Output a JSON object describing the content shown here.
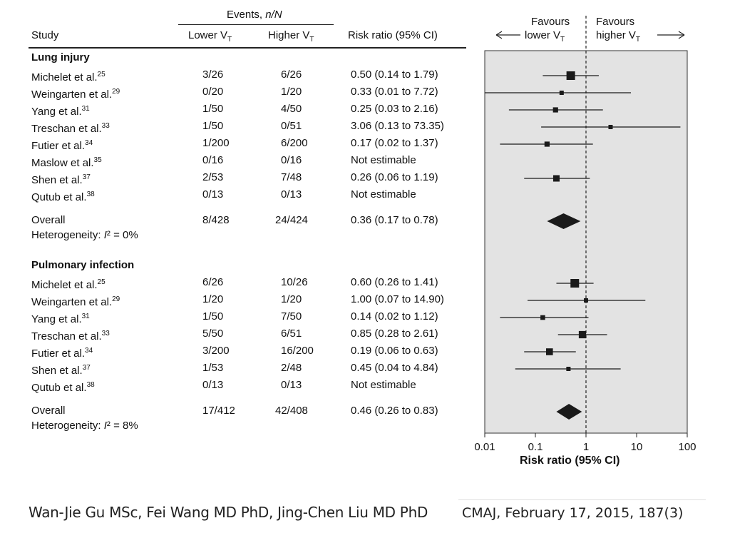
{
  "header": {
    "events_label": "Events, ",
    "events_nN": "n/N",
    "study": "Study",
    "lower": "Lower V",
    "higher": "Higher V",
    "vt_sub": "T",
    "risk_ratio": "Risk ratio (95% CI)",
    "favours_left": "Favours",
    "favours_left2": "lower V",
    "favours_right": "Favours",
    "favours_right2": "higher V"
  },
  "groups": [
    {
      "title": "Lung injury",
      "studies": [
        {
          "name": "Michelet et al.",
          "ref": "25",
          "lower": "3/26",
          "higher": "6/26",
          "rr": "0.50 (0.14 to 1.79)"
        },
        {
          "name": "Weingarten et al.",
          "ref": "29",
          "lower": "0/20",
          "higher": "1/20",
          "rr": "0.33 (0.01 to 7.72)"
        },
        {
          "name": "Yang et al.",
          "ref": "31",
          "lower": "1/50",
          "higher": "4/50",
          "rr": "0.25 (0.03 to 2.16)"
        },
        {
          "name": "Treschan et al.",
          "ref": "33",
          "lower": "1/50",
          "higher": "0/51",
          "rr": "3.06 (0.13 to 73.35)"
        },
        {
          "name": "Futier et al.",
          "ref": "34",
          "lower": "1/200",
          "higher": "6/200",
          "rr": "0.17 (0.02 to 1.37)"
        },
        {
          "name": "Maslow et al.",
          "ref": "35",
          "lower": "0/16",
          "higher": "0/16",
          "rr": "Not estimable"
        },
        {
          "name": "Shen et al.",
          "ref": "37",
          "lower": "2/53",
          "higher": "7/48",
          "rr": "0.26 (0.06 to 1.19)"
        },
        {
          "name": "Qutub et al.",
          "ref": "38",
          "lower": "0/13",
          "higher": "0/13",
          "rr": "Not estimable"
        }
      ],
      "overall": {
        "label": "Overall",
        "lower": "8/428",
        "higher": "24/424",
        "rr": "0.36 (0.17 to 0.78)"
      },
      "heterogeneity": {
        "prefix": "Heterogeneity: ",
        "stat": "I",
        "suffix": "² = 0%"
      }
    },
    {
      "title": "Pulmonary infection",
      "studies": [
        {
          "name": "Michelet et al.",
          "ref": "25",
          "lower": "6/26",
          "higher": "10/26",
          "rr": "0.60 (0.26 to 1.41)"
        },
        {
          "name": "Weingarten et al.",
          "ref": "29",
          "lower": "1/20",
          "higher": "1/20",
          "rr": "1.00 (0.07 to 14.90)"
        },
        {
          "name": "Yang et al.",
          "ref": "31",
          "lower": "1/50",
          "higher": "7/50",
          "rr": "0.14 (0.02 to 1.12)"
        },
        {
          "name": "Treschan et al.",
          "ref": "33",
          "lower": "5/50",
          "higher": "6/51",
          "rr": "0.85 (0.28 to 2.61)"
        },
        {
          "name": "Futier et al.",
          "ref": "34",
          "lower": "3/200",
          "higher": "16/200",
          "rr": "0.19 (0.06 to 0.63)"
        },
        {
          "name": "Shen et al.",
          "ref": "37",
          "lower": "1/53",
          "higher": "2/48",
          "rr": "0.45 (0.04 to 4.84)"
        },
        {
          "name": "Qutub et al.",
          "ref": "38",
          "lower": "0/13",
          "higher": "0/13",
          "rr": "Not estimable"
        }
      ],
      "overall": {
        "label": "Overall",
        "lower": "17/412",
        "higher": "42/408",
        "rr": "0.46 (0.26 to 0.83)"
      },
      "heterogeneity": {
        "prefix": "Heterogeneity: ",
        "stat": "I",
        "suffix": "² = 8%"
      }
    }
  ],
  "footer": {
    "authors": "Wan-Jie Gu MSc, Fei Wang MD PhD, Jing-Chen Liu MD PhD",
    "citation": "CMAJ, February 17, 2015, 187(3)"
  },
  "chart_data": {
    "type": "forest",
    "xlabel": "Risk ratio (95% CI)",
    "xscale": "log",
    "xlim": [
      0.01,
      100
    ],
    "xticks": [
      "0.01",
      "0.1",
      "1",
      "10",
      "100"
    ],
    "xtick_values": [
      0.01,
      0.1,
      1,
      10,
      100
    ],
    "reference_line": 1,
    "colors": {
      "panel_bg": "#e3e3e3",
      "marker": "#1a1a1a"
    },
    "series": [
      {
        "name": "Lung injury",
        "studies": [
          {
            "study": "Michelet et al.",
            "rr": 0.5,
            "lo": 0.14,
            "hi": 1.79,
            "weight": 3
          },
          {
            "study": "Weingarten et al.",
            "rr": 0.33,
            "lo": 0.01,
            "hi": 7.72,
            "weight": 1
          },
          {
            "study": "Yang et al.",
            "rr": 0.25,
            "lo": 0.03,
            "hi": 2.16,
            "weight": 1.4
          },
          {
            "study": "Treschan et al.",
            "rr": 3.06,
            "lo": 0.13,
            "hi": 73.35,
            "weight": 1
          },
          {
            "study": "Futier et al.",
            "rr": 0.17,
            "lo": 0.02,
            "hi": 1.37,
            "weight": 1.4
          },
          {
            "study": "Maslow et al.",
            "rr": null
          },
          {
            "study": "Shen et al.",
            "rr": 0.26,
            "lo": 0.06,
            "hi": 1.19,
            "weight": 2
          },
          {
            "study": "Qutub et al.",
            "rr": null
          }
        ],
        "overall": {
          "rr": 0.36,
          "lo": 0.17,
          "hi": 0.78
        }
      },
      {
        "name": "Pulmonary infection",
        "studies": [
          {
            "study": "Michelet et al.",
            "rr": 0.6,
            "lo": 0.26,
            "hi": 1.41,
            "weight": 3
          },
          {
            "study": "Weingarten et al.",
            "rr": 1.0,
            "lo": 0.07,
            "hi": 14.9,
            "weight": 1
          },
          {
            "study": "Yang et al.",
            "rr": 0.14,
            "lo": 0.02,
            "hi": 1.12,
            "weight": 1.2
          },
          {
            "study": "Treschan et al.",
            "rr": 0.85,
            "lo": 0.28,
            "hi": 2.61,
            "weight": 2.4
          },
          {
            "study": "Futier et al.",
            "rr": 0.19,
            "lo": 0.06,
            "hi": 0.63,
            "weight": 2.2
          },
          {
            "study": "Shen et al.",
            "rr": 0.45,
            "lo": 0.04,
            "hi": 4.84,
            "weight": 1
          },
          {
            "study": "Qutub et al.",
            "rr": null
          }
        ],
        "overall": {
          "rr": 0.46,
          "lo": 0.26,
          "hi": 0.83
        }
      }
    ]
  }
}
